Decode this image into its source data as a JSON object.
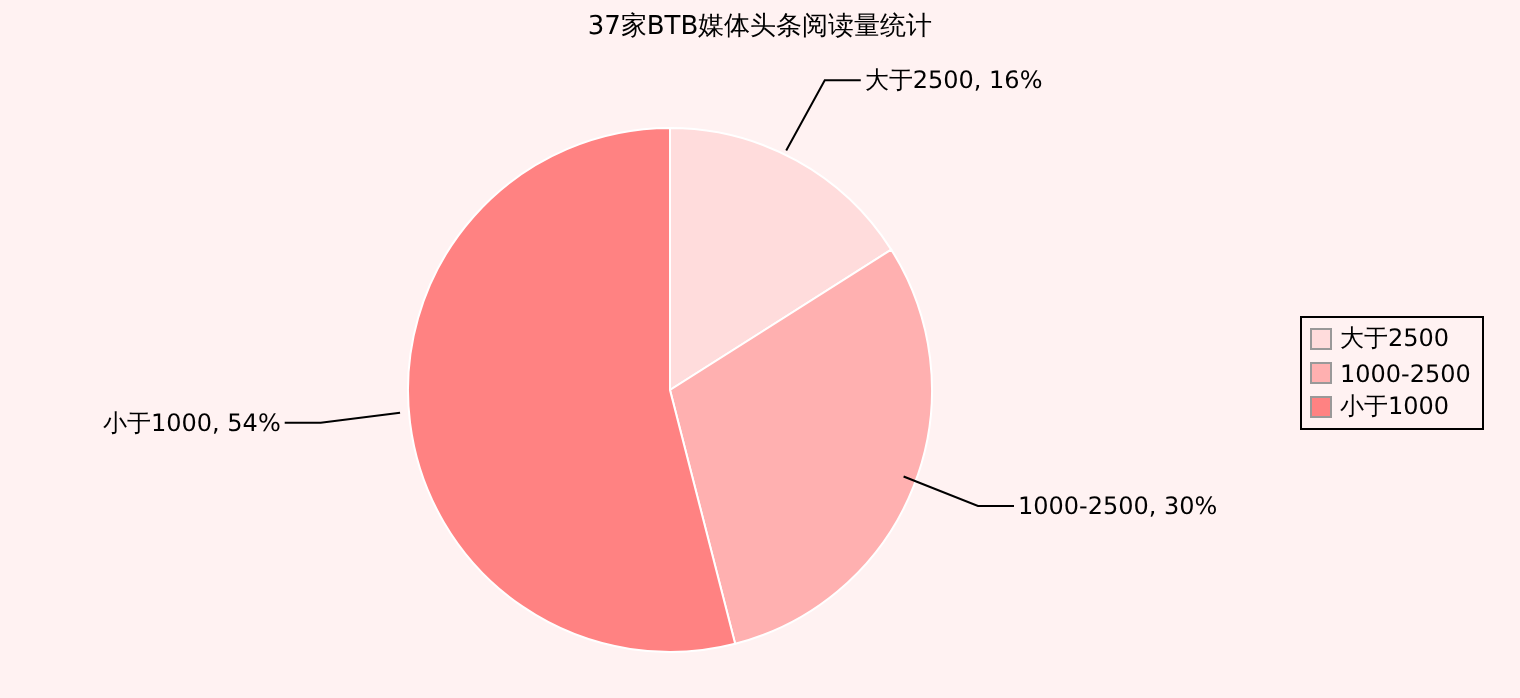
{
  "chart_data": {
    "type": "pie",
    "title": "37家BTB媒体头条阅读量统计",
    "categories": [
      "大于2500",
      "1000-2500",
      "小于1000"
    ],
    "values": [
      16,
      30,
      54
    ],
    "colors": [
      "#ffdcdc",
      "#ffb0b0",
      "#ff8282"
    ],
    "value_labels": [
      "大于2500, 16%",
      "1000-2500, 30%",
      "小于1000, 54%"
    ],
    "legend": "right"
  }
}
